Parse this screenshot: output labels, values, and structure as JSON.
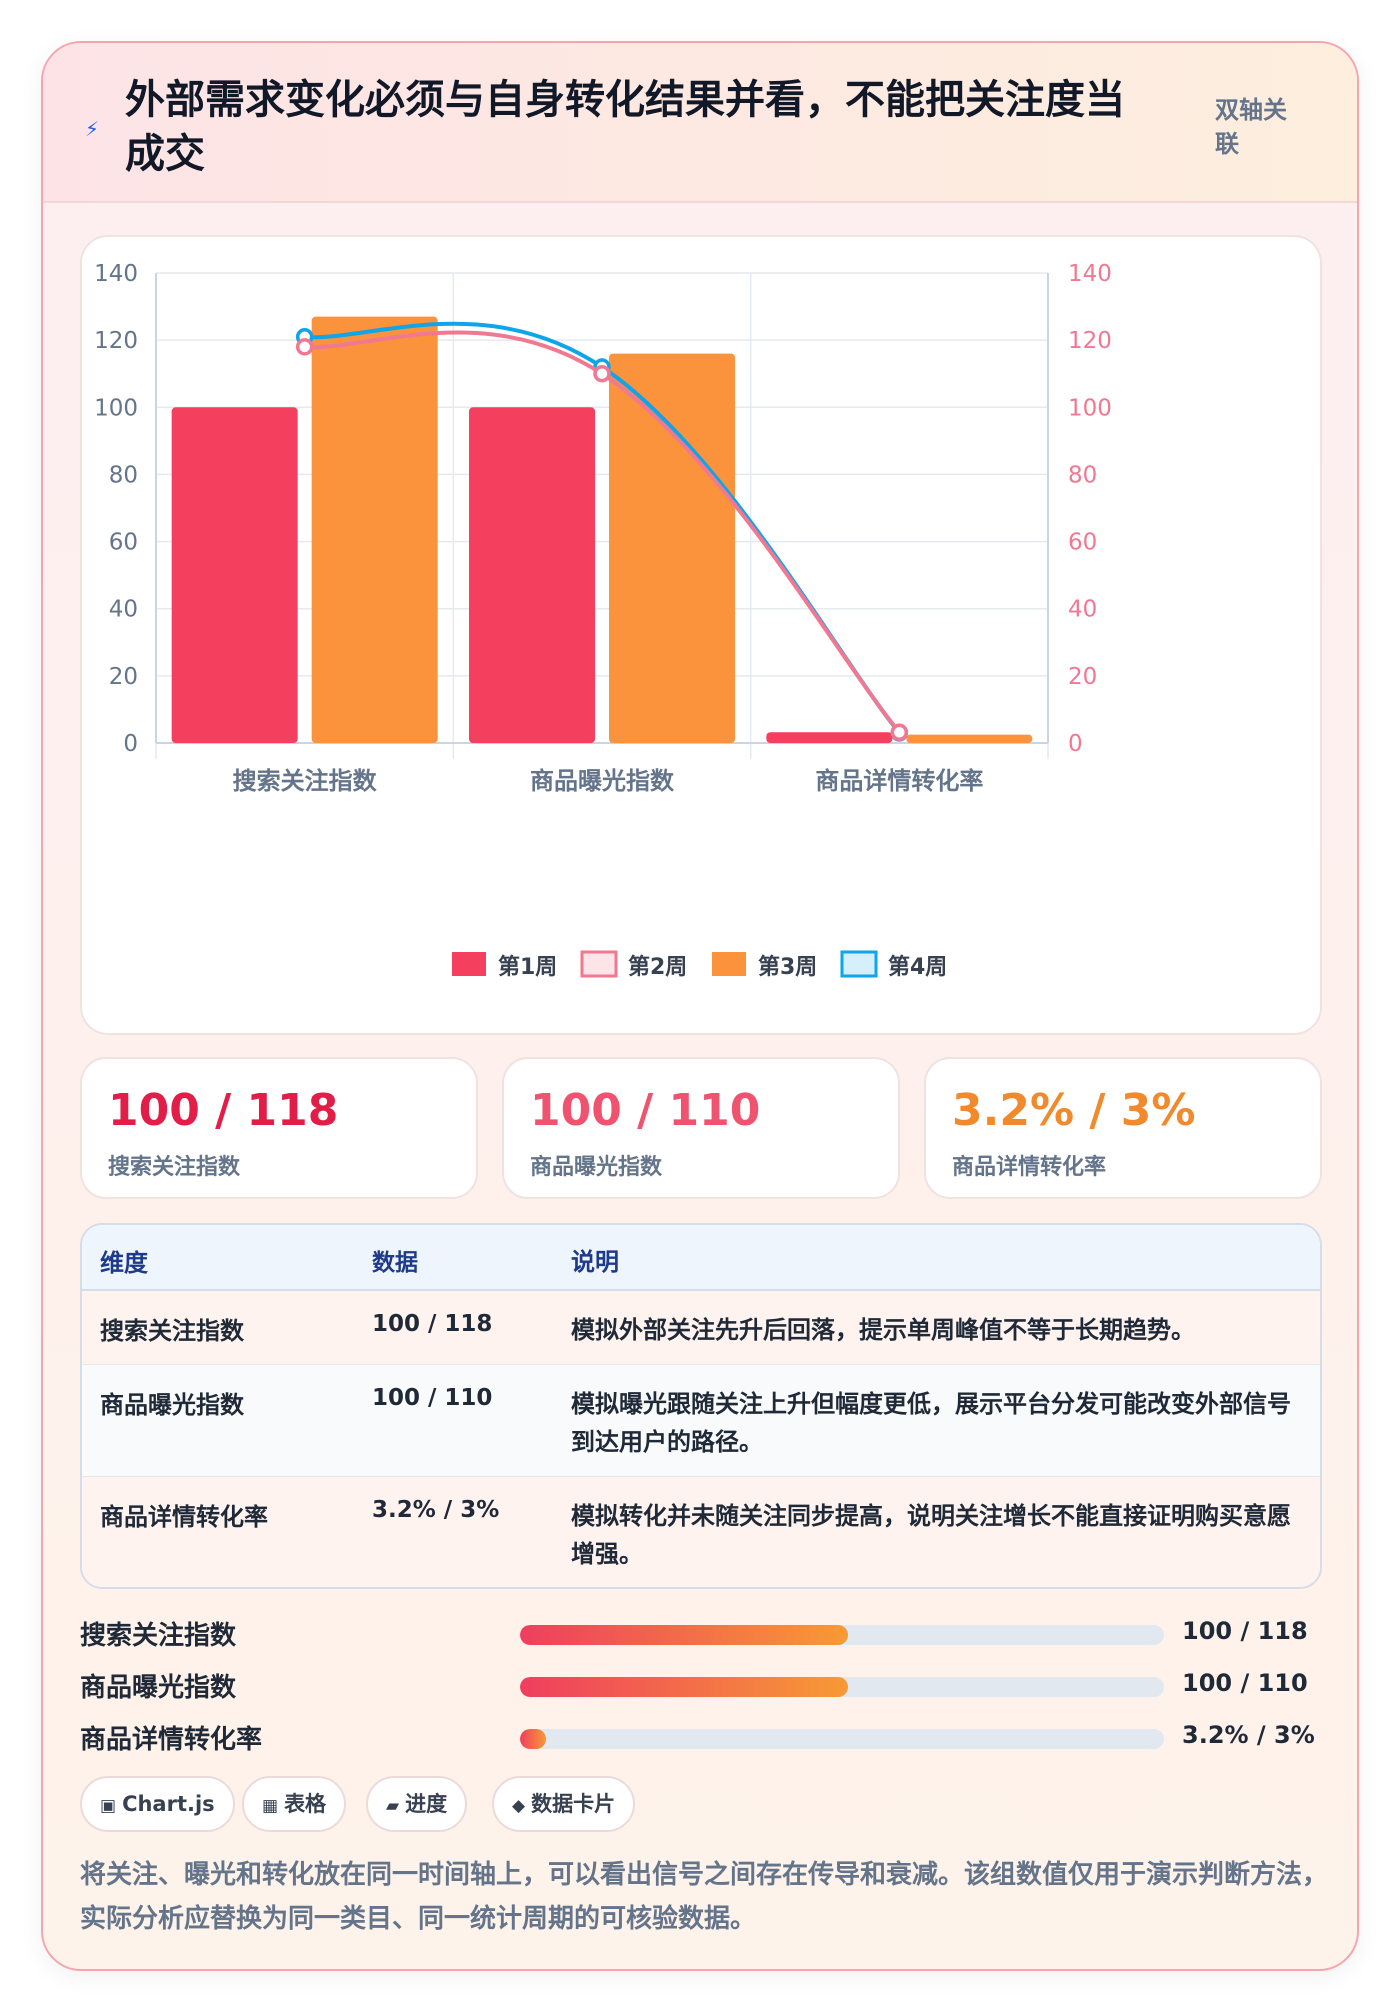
{
  "header": {
    "icon": "lightning-icon",
    "title": "外部需求变化必须与自身转化结果并看，不能把关注度当成交",
    "tag": "双轴关联"
  },
  "chart_data": {
    "type": "bar",
    "categories": [
      "搜索关注指数",
      "商品曝光指数",
      "商品详情转化率"
    ],
    "series": [
      {
        "name": "第1周",
        "type": "bar",
        "axis": "left",
        "color": "#f43f5e",
        "values": [
          100,
          100,
          3.2
        ]
      },
      {
        "name": "第2周",
        "type": "line",
        "axis": "right",
        "color": "#f07891",
        "values": [
          118,
          110,
          3.2
        ]
      },
      {
        "name": "第3周",
        "type": "bar",
        "axis": "left",
        "color": "#fb923c",
        "values": [
          127,
          116,
          2.5
        ]
      },
      {
        "name": "第4周",
        "type": "line",
        "axis": "right",
        "color": "#0ea5e9",
        "values": [
          121,
          112,
          3.0
        ]
      }
    ],
    "ylim": [
      0,
      140
    ],
    "y2lim": [
      0,
      140
    ],
    "yticks": [
      0,
      20,
      40,
      60,
      80,
      100,
      120,
      140
    ],
    "legend_position": "bottom",
    "grid": true
  },
  "kpis": [
    {
      "value": "100 / 118",
      "label": "搜索关注指数",
      "color": "#e11d48"
    },
    {
      "value": "100 / 110",
      "label": "商品曝光指数",
      "color": "#f0536f"
    },
    {
      "value": "3.2% / 3%",
      "label": "商品详情转化率",
      "color": "#f08a2c"
    }
  ],
  "table": {
    "headers": [
      "维度",
      "数据",
      "说明"
    ],
    "rows": [
      [
        "搜索关注指数",
        "100 / 118",
        "模拟外部关注先升后回落，提示单周峰值不等于长期趋势。"
      ],
      [
        "商品曝光指数",
        "100 / 110",
        "模拟曝光跟随关注上升但幅度更低，展示平台分发可能改变外部信号到达用户的路径。"
      ],
      [
        "商品详情转化率",
        "3.2% / 3%",
        "模拟转化并未随关注同步提高，说明关注增长不能直接证明购买意愿增强。"
      ]
    ]
  },
  "progress": [
    {
      "label": "搜索关注指数",
      "value": "100 / 118",
      "fraction": 0.51
    },
    {
      "label": "商品曝光指数",
      "value": "100 / 110",
      "fraction": 0.51
    },
    {
      "label": "商品详情转化率",
      "value": "3.2% / 3%",
      "fraction": 0.04
    }
  ],
  "chips": [
    {
      "icon": "▣",
      "label": "Chart.js"
    },
    {
      "icon": "▦",
      "label": "表格"
    },
    {
      "icon": "▰",
      "label": "进度"
    },
    {
      "icon": "◆",
      "label": "数据卡片"
    }
  ],
  "note": "将关注、曝光和转化放在同一时间轴上，可以看出信号之间存在传导和衰减。该组数值仅用于演示判断方法，实际分析应替换为同一类目、同一统计周期的可核验数据。"
}
